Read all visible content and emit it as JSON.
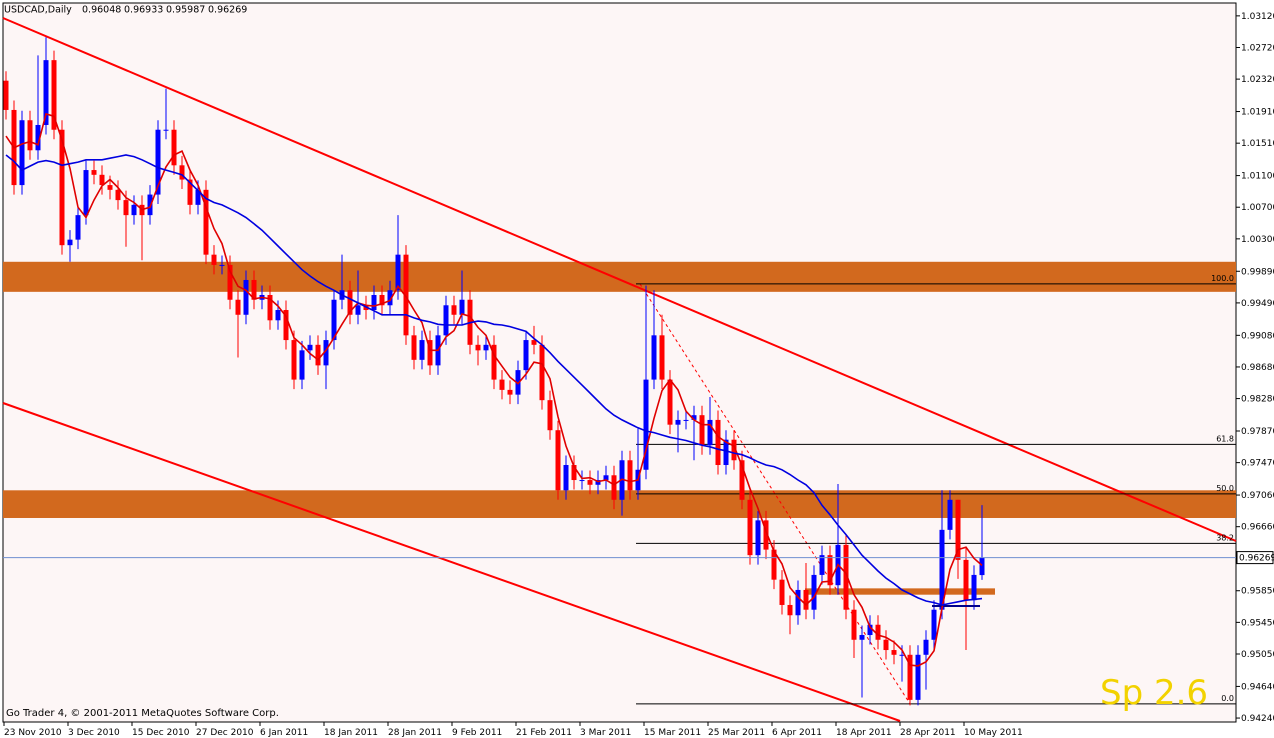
{
  "chart_data": {
    "type": "candlestick",
    "title": "USDCAD,Daily",
    "footer": "Go Trader 4, © 2001-2011 MetaQuotes Software Corp.",
    "note": "Sp 2.6",
    "up_color": "#0000ff",
    "down_color": "#ff0000",
    "categories": [
      "23 Nov 2010",
      null,
      null,
      null,
      null,
      null,
      null,
      null,
      "3 Dec 2010",
      null,
      null,
      null,
      null,
      null,
      null,
      null,
      "15 Dec 2010",
      null,
      null,
      null,
      null,
      null,
      null,
      null,
      "27 Dec 2010",
      null,
      null,
      null,
      null,
      null,
      null,
      null,
      "6 Jan 2011",
      null,
      null,
      null,
      null,
      null,
      null,
      null,
      "18 Jan 2011",
      null,
      null,
      null,
      null,
      null,
      null,
      null,
      "28 Jan 2011",
      null,
      null,
      null,
      null,
      null,
      null,
      null,
      "9 Feb 2011",
      null,
      null,
      null,
      null,
      null,
      null,
      null,
      "21 Feb 2011",
      null,
      null,
      null,
      null,
      null,
      null,
      null,
      "3 Mar 2011",
      null,
      null,
      null,
      null,
      null,
      null,
      null,
      "15 Mar 2011",
      null,
      null,
      null,
      null,
      null,
      null,
      null,
      "25 Mar 2011",
      null,
      null,
      null,
      null,
      null,
      null,
      null,
      "6 Apr 2011",
      null,
      null,
      null,
      null,
      null,
      null,
      null,
      "18 Apr 2011",
      null,
      null,
      null,
      null,
      null,
      null,
      null,
      "28 Apr 2011",
      null,
      null,
      null,
      null,
      null,
      null,
      null,
      "10 May 2011",
      null,
      null
    ],
    "open": [
      1.023,
      1.0193,
      1.0098,
      1.018,
      1.0142,
      1.0174,
      1.0256,
      1.0168,
      1.0022,
      1.0029,
      1.006,
      1.0117,
      1.0111,
      1.0098,
      1.0092,
      1.0079,
      1.006,
      1.0073,
      1.006,
      1.0086,
      1.0168,
      1.0168,
      1.0123,
      1.0105,
      1.0073,
      1.0092,
      1.001,
      0.9997,
      0.9997,
      0.9953,
      0.9934,
      0.9978,
      0.9953,
      0.9959,
      0.9927,
      0.994,
      0.9902,
      0.9852,
      0.9889,
      0.9896,
      0.987,
      0.9902,
      0.9953,
      0.9965,
      0.9934,
      0.9946,
      0.994,
      0.9959,
      0.9946,
      0.9965,
      1.001,
      0.9908,
      0.9877,
      0.9902,
      0.987,
      0.9908,
      0.9946,
      0.9934,
      0.9953,
      0.9896,
      0.9889,
      0.9896,
      0.9852,
      0.9839,
      0.9833,
      0.9864,
      0.9902,
      0.9896,
      0.9826,
      0.9788,
      0.9712,
      0.9744,
      0.9725,
      0.9725,
      0.9719,
      0.9725,
      0.9731,
      0.97,
      0.975,
      0.9712,
      0.9738,
      0.9852,
      0.9908,
      0.9852,
      0.9795,
      0.9801,
      0.9801,
      0.9807,
      0.9769,
      0.9801,
      0.9744,
      0.9776,
      0.975,
      0.97,
      0.963,
      0.9674,
      0.9637,
      0.9599,
      0.9567,
      0.9554,
      0.9586,
      0.9561,
      0.9605,
      0.963,
      0.9592,
      0.9643,
      0.9561,
      0.9523,
      0.9529,
      0.9542,
      0.9523,
      0.951,
      0.9504,
      0.9504,
      0.9447,
      0.9504,
      0.9523,
      0.9561,
      0.9662,
      0.97,
      0.9624,
      0.9573,
      0.96048
    ],
    "high": [
      1.0242,
      1.0205,
      1.0192,
      1.0192,
      1.0262,
      1.0285,
      1.0268,
      1.018,
      1.0041,
      1.0072,
      1.0129,
      1.0129,
      1.0123,
      1.011,
      1.0104,
      1.0091,
      1.0085,
      1.0085,
      1.0098,
      1.018,
      1.022,
      1.018,
      1.0135,
      1.0117,
      1.0104,
      1.0104,
      1.0022,
      1.0009,
      1.0009,
      0.9965,
      0.999,
      0.999,
      0.9971,
      0.9971,
      0.9952,
      0.9952,
      0.9914,
      0.9901,
      0.9908,
      0.9908,
      0.9914,
      0.9965,
      1.001,
      0.9977,
      0.999,
      0.9958,
      0.9971,
      0.9971,
      0.9977,
      1.006,
      1.0022,
      0.992,
      0.9914,
      0.9914,
      0.992,
      0.9958,
      0.9958,
      0.999,
      0.9965,
      0.9908,
      0.9908,
      0.9908,
      0.9864,
      0.9851,
      0.9876,
      0.9914,
      0.992,
      0.9908,
      0.9838,
      0.98,
      0.9756,
      0.9756,
      0.9737,
      0.9737,
      0.9737,
      0.9743,
      0.9743,
      0.9762,
      0.9762,
      0.979,
      0.9971,
      0.9965,
      0.9934,
      0.9864,
      0.9813,
      0.9813,
      0.9819,
      0.9819,
      0.983,
      0.9813,
      0.9788,
      0.9788,
      0.9762,
      0.9712,
      0.9686,
      0.9686,
      0.9649,
      0.9611,
      0.9579,
      0.9598,
      0.962,
      0.9617,
      0.9642,
      0.9642,
      0.972,
      0.9655,
      0.9573,
      0.9541,
      0.9554,
      0.9554,
      0.9535,
      0.9522,
      0.9516,
      0.9516,
      0.9516,
      0.9535,
      0.9573,
      0.9712,
      0.9712,
      0.97,
      0.964,
      0.9617,
      0.96933
    ],
    "low": [
      1.0181,
      1.0086,
      1.0086,
      1.013,
      1.013,
      1.0162,
      1.0156,
      1.001,
      1.0001,
      1.0017,
      1.0048,
      1.0099,
      1.0086,
      1.008,
      1.0067,
      1.002,
      1.0048,
      1.0003,
      1.0048,
      1.0074,
      1.0156,
      1.0111,
      1.0093,
      1.0061,
      1.0061,
      0.9998,
      0.9985,
      0.9985,
      0.9941,
      0.988,
      0.9922,
      0.9941,
      0.9941,
      0.9915,
      0.9915,
      0.989,
      0.984,
      0.984,
      0.9877,
      0.9858,
      0.984,
      0.989,
      0.9941,
      0.9922,
      0.9922,
      0.9928,
      0.9928,
      0.9934,
      0.9934,
      0.9953,
      0.9896,
      0.9865,
      0.9865,
      0.9858,
      0.9858,
      0.9896,
      0.9922,
      0.9922,
      0.9884,
      0.987,
      0.9877,
      0.984,
      0.9827,
      0.9821,
      0.9821,
      0.9852,
      0.9884,
      0.9814,
      0.9776,
      0.97,
      0.97,
      0.9713,
      0.9713,
      0.9707,
      0.9707,
      0.9713,
      0.9688,
      0.968,
      0.97,
      0.97,
      0.9726,
      0.984,
      0.984,
      0.9783,
      0.976,
      0.9789,
      0.975,
      0.9757,
      0.9757,
      0.9732,
      0.9732,
      0.9738,
      0.9688,
      0.9618,
      0.9618,
      0.9625,
      0.9587,
      0.9555,
      0.953,
      0.9542,
      0.9549,
      0.9549,
      0.9593,
      0.958,
      0.958,
      0.9549,
      0.95,
      0.945,
      0.9517,
      0.9511,
      0.9498,
      0.9492,
      0.947,
      0.944,
      0.944,
      0.946,
      0.9511,
      0.9549,
      0.965,
      0.96,
      0.951,
      0.9561,
      0.95987
    ],
    "close": [
      1.0193,
      1.0098,
      1.018,
      1.0142,
      1.0174,
      1.0256,
      1.0168,
      1.0022,
      1.0029,
      1.006,
      1.0117,
      1.0111,
      1.0098,
      1.0092,
      1.0079,
      1.006,
      1.0073,
      1.006,
      1.0086,
      1.0168,
      1.0168,
      1.0123,
      1.0105,
      1.0073,
      1.0092,
      1.001,
      0.9997,
      0.9997,
      0.9953,
      0.9934,
      0.9978,
      0.9953,
      0.9959,
      0.9927,
      0.994,
      0.9902,
      0.9852,
      0.9889,
      0.9896,
      0.987,
      0.9902,
      0.9953,
      0.9965,
      0.9934,
      0.9946,
      0.994,
      0.9959,
      0.9946,
      0.9965,
      1.001,
      0.9908,
      0.9877,
      0.9902,
      0.987,
      0.9908,
      0.9946,
      0.9934,
      0.9953,
      0.9896,
      0.9889,
      0.9896,
      0.9852,
      0.9839,
      0.9833,
      0.9864,
      0.9902,
      0.9896,
      0.9826,
      0.9788,
      0.9712,
      0.9744,
      0.9725,
      0.9725,
      0.9719,
      0.9725,
      0.9731,
      0.97,
      0.975,
      0.9712,
      0.9738,
      0.9852,
      0.9908,
      0.9852,
      0.9795,
      0.9801,
      0.9801,
      0.9807,
      0.9769,
      0.9801,
      0.9744,
      0.9776,
      0.975,
      0.97,
      0.963,
      0.9674,
      0.9637,
      0.9599,
      0.9567,
      0.9554,
      0.9586,
      0.9561,
      0.9605,
      0.963,
      0.9592,
      0.9643,
      0.9561,
      0.9523,
      0.9529,
      0.9542,
      0.9523,
      0.951,
      0.9504,
      0.9504,
      0.9447,
      0.9504,
      0.9523,
      0.9561,
      0.9662,
      0.97,
      0.9624,
      0.9573,
      0.9605,
      0.96269
    ],
    "overlays": [
      {
        "color": "#e00000",
        "values": [
          1.016,
          1.0145,
          1.015,
          1.0153,
          1.0149,
          1.0188,
          1.0185,
          1.0155,
          1.0119,
          1.007,
          1.0057,
          1.0079,
          1.0097,
          1.0105,
          1.0095,
          1.0082,
          1.0076,
          1.0067,
          1.007,
          1.0097,
          1.0121,
          1.0136,
          1.0141,
          1.0117,
          1.0098,
          1.007,
          1.0043,
          1.0024,
          0.9989,
          0.997,
          0.9965,
          0.9954,
          0.9956,
          0.9954,
          0.9945,
          0.9932,
          0.9905,
          0.9896,
          0.9885,
          0.9877,
          0.9889,
          0.9905,
          0.9922,
          0.9938,
          0.9949,
          0.9946,
          0.9945,
          0.9948,
          0.9952,
          0.997,
          0.9957,
          0.994,
          0.9924,
          0.9889,
          0.9889,
          0.9906,
          0.9914,
          0.9935,
          0.9932,
          0.9918,
          0.9908,
          0.9883,
          0.9869,
          0.9855,
          0.9847,
          0.9859,
          0.9874,
          0.9872,
          0.9853,
          0.9805,
          0.9768,
          0.9742,
          0.9727,
          0.9728,
          0.9723,
          0.9725,
          0.9719,
          0.9726,
          0.9723,
          0.9725,
          0.9763,
          0.9803,
          0.9838,
          0.9852,
          0.9839,
          0.9812,
          0.9801,
          0.9795,
          0.9795,
          0.978,
          0.9773,
          0.9768,
          0.9743,
          0.9714,
          0.9689,
          0.966,
          0.9635,
          0.9619,
          0.9589,
          0.9577,
          0.9567,
          0.9577,
          0.9596,
          0.9597,
          0.9618,
          0.9607,
          0.958,
          0.9564,
          0.9539,
          0.9529,
          0.9526,
          0.952,
          0.951,
          0.9491,
          0.949,
          0.9495,
          0.9509,
          0.9563,
          0.9612,
          0.9637,
          0.964,
          0.9626,
          0.9617
        ]
      },
      {
        "color": "#0000e0",
        "values": [
          1.0136,
          1.0128,
          1.0117,
          1.0122,
          1.0127,
          1.0129,
          1.0127,
          1.0123,
          1.0125,
          1.0127,
          1.013,
          1.013,
          1.013,
          1.0132,
          1.0134,
          1.0136,
          1.0134,
          1.013,
          1.0125,
          1.012,
          1.0117,
          1.0114,
          1.0111,
          1.0101,
          1.0091,
          1.0081,
          1.0076,
          1.0073,
          1.0068,
          1.0063,
          1.0057,
          1.0049,
          1.0041,
          1.0031,
          1.0021,
          1.0011,
          1.0001,
          0.9991,
          0.9983,
          0.9976,
          0.997,
          0.9965,
          0.9959,
          0.9954,
          0.9949,
          0.9944,
          0.9939,
          0.9934,
          0.9934,
          0.9934,
          0.9934,
          0.993,
          0.9927,
          0.9925,
          0.9922,
          0.9921,
          0.9921,
          0.9921,
          0.9924,
          0.9926,
          0.9925,
          0.9922,
          0.9921,
          0.9919,
          0.9916,
          0.9913,
          0.9904,
          0.9896,
          0.9886,
          0.9875,
          0.9865,
          0.9855,
          0.9845,
          0.9835,
          0.9825,
          0.9815,
          0.9807,
          0.9801,
          0.9796,
          0.9791,
          0.9787,
          0.9785,
          0.9782,
          0.9779,
          0.9777,
          0.9775,
          0.9772,
          0.9769,
          0.9767,
          0.9764,
          0.9762,
          0.9759,
          0.9757,
          0.9753,
          0.9748,
          0.9744,
          0.9742,
          0.9738,
          0.9732,
          0.9725,
          0.9719,
          0.9709,
          0.9693,
          0.9681,
          0.9668,
          0.9656,
          0.9643,
          0.963,
          0.962,
          0.961,
          0.9601,
          0.9594,
          0.9586,
          0.9581,
          0.9576,
          0.9572,
          0.957,
          0.9567,
          0.9569,
          0.9571,
          0.9573,
          0.9574,
          0.9575
        ]
      }
    ],
    "zones": [
      {
        "from": 0.9963,
        "to": 1.0001
      },
      {
        "from": 0.9677,
        "to": 0.9712
      },
      {
        "from": 0.958,
        "to": 0.9588
      }
    ],
    "zone_color": "#d2691e",
    "fibonacci": {
      "high": 0.9973,
      "low": 0.9442,
      "levels": [
        {
          "value": 100,
          "label": "100.0"
        },
        61.8,
        {
          "value": 50,
          "label": "50.0"
        },
        38.2,
        {
          "value": 0,
          "label": "0.0"
        }
      ]
    },
    "ylim": [
      0.9419,
      1.0327
    ],
    "yticks": [
      {
        "value": 1.0312,
        "label": "1.03120"
      },
      {
        "value": 1.0272,
        "label": "1.02720"
      },
      {
        "value": 1.0232,
        "label": "1.02320"
      },
      {
        "value": 1.0191,
        "label": "1.01910"
      },
      {
        "value": 1.0151,
        "label": "1.01510"
      },
      {
        "value": 1.011,
        "label": "1.01100"
      },
      {
        "value": 1.007,
        "label": "1.00700"
      },
      {
        "value": 1.003,
        "label": "1.00300"
      },
      {
        "value": 0.9989,
        "label": "0.99890"
      },
      {
        "value": 0.9949,
        "label": "0.99490"
      },
      {
        "value": 0.9908,
        "label": "0.99080"
      },
      {
        "value": 0.9868,
        "label": "0.98680"
      },
      {
        "value": 0.9828,
        "label": "0.98280"
      },
      {
        "value": 0.9787,
        "label": "0.97870"
      },
      {
        "value": 0.9747,
        "label": "0.97470"
      },
      {
        "value": 0.9706,
        "label": "0.97060"
      },
      {
        "value": 0.9666,
        "label": "0.96660"
      },
      {
        "value": 0.9585,
        "label": "0.95850"
      },
      {
        "value": 0.9545,
        "label": "0.95450"
      },
      {
        "value": 0.9505,
        "label": "0.95050"
      },
      {
        "value": 0.9464,
        "label": "0.94640"
      },
      {
        "value": 0.9424,
        "label": "0.94240"
      }
    ]
  }
}
